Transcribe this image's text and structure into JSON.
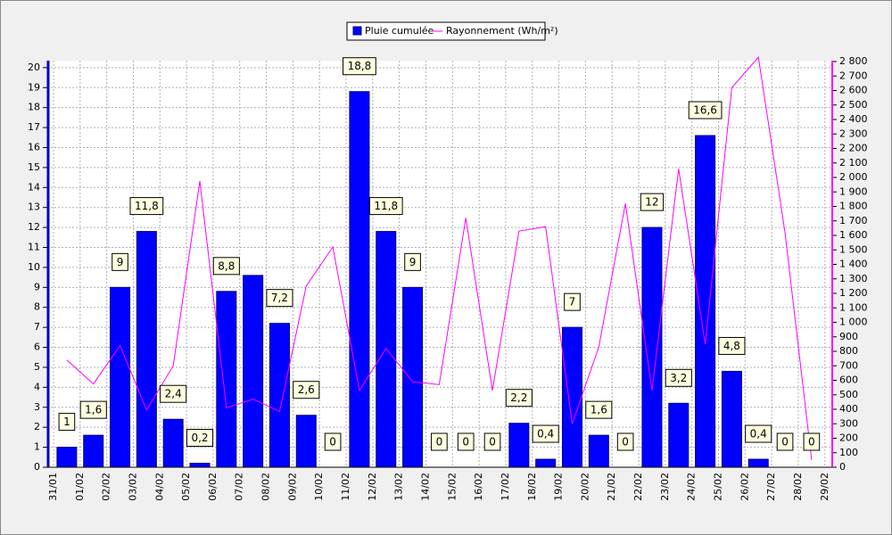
{
  "chart_data": {
    "type": "bar",
    "categories": [
      "31/01",
      "01/02",
      "02/02",
      "03/02",
      "04/02",
      "05/02",
      "06/02",
      "07/02",
      "08/02",
      "09/02",
      "10/02",
      "11/02",
      "12/02",
      "13/02",
      "14/02",
      "15/02",
      "16/02",
      "17/02",
      "18/02",
      "19/02",
      "20/02",
      "21/02",
      "22/02",
      "23/02",
      "24/02",
      "25/02",
      "26/02",
      "27/02",
      "28/02",
      "29/02"
    ],
    "series": [
      {
        "name": "Pluie cumulée",
        "color": "#0000ff",
        "values": [
          1,
          1.6,
          9,
          11.8,
          2.4,
          0.2,
          8.8,
          9.6,
          7.2,
          2.6,
          0,
          18.8,
          11.8,
          9,
          0,
          0,
          0,
          2.2,
          0.4,
          7,
          1.6,
          0,
          12,
          3.2,
          16.6,
          4.8,
          0.4,
          0,
          0,
          null
        ],
        "value_labels": [
          "1",
          "1,6",
          "9",
          "11,8",
          "2,4",
          "0,2",
          "8,8",
          null,
          "7,2",
          "2,6",
          "0",
          "18,8",
          "11,8",
          "9",
          "0",
          "0",
          "0",
          "2,2",
          "0,4",
          "7",
          "1,6",
          "0",
          "12",
          "3,2",
          "16,6",
          "4,8",
          "0,4",
          "0",
          "0",
          null
        ]
      },
      {
        "name": "Rayonnement (Wh/m²)",
        "color": "#ff00ff",
        "axis": "y2",
        "values": [
          740,
          575,
          840,
          395,
          700,
          1975,
          410,
          470,
          385,
          1250,
          1520,
          530,
          820,
          590,
          570,
          1720,
          530,
          1630,
          1660,
          300,
          830,
          1820,
          530,
          2060,
          850,
          2620,
          2830,
          1620,
          50,
          null
        ]
      }
    ],
    "ylim": [
      0,
      20.35
    ],
    "yticks": [
      0,
      1,
      2,
      3,
      4,
      5,
      6,
      7,
      8,
      9,
      10,
      11,
      12,
      13,
      14,
      15,
      16,
      17,
      18,
      19,
      20
    ],
    "y2lim": [
      0,
      2800
    ],
    "y2ticks": [
      0,
      100,
      200,
      300,
      400,
      500,
      600,
      700,
      800,
      900,
      {
        "value": 1000,
        "label": "1 000"
      },
      {
        "value": 1100,
        "label": "1 100"
      },
      {
        "value": 1200,
        "label": "1 200"
      },
      {
        "value": 1300,
        "label": "1 300"
      },
      {
        "value": 1400,
        "label": "1 400"
      },
      {
        "value": 1500,
        "label": "1 500"
      },
      {
        "value": 1600,
        "label": "1 600"
      },
      {
        "value": 1700,
        "label": "1 700"
      },
      {
        "value": 1800,
        "label": "1 800"
      },
      {
        "value": 1900,
        "label": "1 900"
      },
      {
        "value": 2000,
        "label": "2 000"
      },
      {
        "value": 2100,
        "label": "2 100"
      },
      {
        "value": 2200,
        "label": "2 200"
      },
      {
        "value": 2300,
        "label": "2 300"
      },
      {
        "value": 2400,
        "label": "2 400"
      },
      {
        "value": 2500,
        "label": "2 500"
      },
      {
        "value": 2600,
        "label": "2 600"
      },
      {
        "value": 2700,
        "label": "2 700"
      },
      {
        "value": 2800,
        "label": "2 800"
      }
    ],
    "grid": true,
    "legend": "top"
  }
}
